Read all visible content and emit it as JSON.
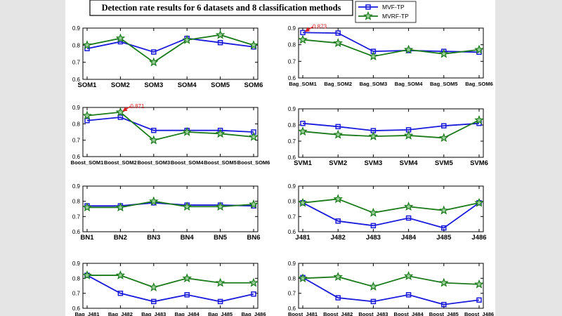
{
  "title": "Detection rate results for 6 datasets and 8 classification methods",
  "legend": [
    {
      "name": "MVF-TP",
      "color": "#1a1adc",
      "marker": "square"
    },
    {
      "name": "MVRF-TP",
      "color": "#1b7a1b",
      "marker": "star"
    }
  ],
  "chart_data": [
    {
      "type": "line",
      "ylim": [
        0.6,
        0.9
      ],
      "yticks": [
        "0.6",
        "0.7",
        "0.8",
        "0.9"
      ],
      "categories": [
        "SOM1",
        "SOM2",
        "SOM3",
        "SOM4",
        "SOM5",
        "SOM6"
      ],
      "series": [
        {
          "name": "MVF-TP",
          "values": [
            0.78,
            0.82,
            0.76,
            0.84,
            0.815,
            0.79
          ]
        },
        {
          "name": "MVRF-TP",
          "values": [
            0.8,
            0.84,
            0.7,
            0.83,
            0.86,
            0.8
          ]
        }
      ]
    },
    {
      "type": "line",
      "ylim": [
        0.6,
        0.9
      ],
      "yticks": [
        "0.6",
        "0.7",
        "0.8",
        "0.9"
      ],
      "categories": [
        "Bag_SOM1",
        "Bag_SOM2",
        "Bag_SOM3",
        "Bag_SOM4",
        "Bag_SOM5",
        "Bag_SOM6"
      ],
      "series": [
        {
          "name": "MVF-TP",
          "values": [
            0.873,
            0.87,
            0.76,
            0.765,
            0.76,
            0.755
          ]
        },
        {
          "name": "MVRF-TP",
          "values": [
            0.83,
            0.81,
            0.73,
            0.77,
            0.745,
            0.77
          ]
        }
      ],
      "annotation": {
        "text": "0.873",
        "index": 0
      }
    },
    {
      "type": "line",
      "ylim": [
        0.6,
        0.9
      ],
      "yticks": [
        "0.6",
        "0.7",
        "0.8",
        "0.9"
      ],
      "categories": [
        "Boost_SOM1",
        "Boost_SOM2",
        "Boost_SOM3",
        "Boost_SOM4",
        "Boost_SOM5",
        "Boost_SOM6"
      ],
      "series": [
        {
          "name": "MVF-TP",
          "values": [
            0.82,
            0.84,
            0.76,
            0.76,
            0.76,
            0.75
          ]
        },
        {
          "name": "MVRF-TP",
          "values": [
            0.85,
            0.871,
            0.7,
            0.75,
            0.74,
            0.72
          ]
        }
      ],
      "annotation": {
        "text": "0.871",
        "index": 1
      }
    },
    {
      "type": "line",
      "ylim": [
        0.6,
        0.9
      ],
      "yticks": [
        "0.6",
        "0.7",
        "0.8",
        "0.9"
      ],
      "categories": [
        "SVM1",
        "SVM2",
        "SVM3",
        "SVM4",
        "SVM5",
        "SVM6"
      ],
      "series": [
        {
          "name": "MVF-TP",
          "values": [
            0.81,
            0.79,
            0.765,
            0.77,
            0.795,
            0.81
          ]
        },
        {
          "name": "MVRF-TP",
          "values": [
            0.76,
            0.74,
            0.73,
            0.735,
            0.72,
            0.83
          ]
        }
      ]
    },
    {
      "type": "line",
      "ylim": [
        0.6,
        0.9
      ],
      "yticks": [
        "0.6",
        "0.7",
        "0.8",
        "0.9"
      ],
      "categories": [
        "BN1",
        "BN2",
        "BN3",
        "BN4",
        "BN5",
        "BN6"
      ],
      "series": [
        {
          "name": "MVF-TP",
          "values": [
            0.77,
            0.77,
            0.79,
            0.775,
            0.775,
            0.77
          ]
        },
        {
          "name": "MVRF-TP",
          "values": [
            0.76,
            0.76,
            0.8,
            0.765,
            0.765,
            0.78
          ]
        }
      ]
    },
    {
      "type": "line",
      "ylim": [
        0.6,
        0.9
      ],
      "yticks": [
        "0.6",
        "0.7",
        "0.8",
        "0.9"
      ],
      "categories": [
        "J481",
        "J482",
        "J483",
        "J484",
        "J485",
        "J486"
      ],
      "series": [
        {
          "name": "MVF-TP",
          "values": [
            0.79,
            0.67,
            0.64,
            0.69,
            0.625,
            0.79
          ]
        },
        {
          "name": "MVRF-TP",
          "values": [
            0.79,
            0.815,
            0.725,
            0.765,
            0.74,
            0.79
          ]
        }
      ]
    },
    {
      "type": "line",
      "ylim": [
        0.6,
        0.9
      ],
      "yticks": [
        "0.6",
        "0.7",
        "0.8",
        "0.9"
      ],
      "categories": [
        "Bag_J481",
        "Bag_J482",
        "Bag_J483",
        "Bag_J484",
        "Bag_J485",
        "Bag_J486"
      ],
      "series": [
        {
          "name": "MVF-TP",
          "values": [
            0.82,
            0.7,
            0.645,
            0.69,
            0.645,
            0.695
          ]
        },
        {
          "name": "MVRF-TP",
          "values": [
            0.82,
            0.82,
            0.74,
            0.8,
            0.77,
            0.77
          ]
        }
      ]
    },
    {
      "type": "line",
      "ylim": [
        0.6,
        0.9
      ],
      "yticks": [
        "0.6",
        "0.7",
        "0.8",
        "0.9"
      ],
      "categories": [
        "Boost_J481",
        "Boost_J482",
        "Boost_J483",
        "Boost_J484",
        "Boost_J485",
        "Boost_J486"
      ],
      "series": [
        {
          "name": "MVF-TP",
          "values": [
            0.805,
            0.67,
            0.645,
            0.69,
            0.625,
            0.655
          ]
        },
        {
          "name": "MVRF-TP",
          "values": [
            0.8,
            0.81,
            0.745,
            0.815,
            0.77,
            0.76
          ]
        }
      ]
    }
  ]
}
